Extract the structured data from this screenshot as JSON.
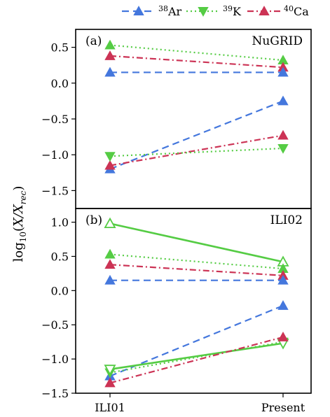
{
  "chart_data": {
    "type": "line",
    "ylabel": "log10(X/Xrec)",
    "legend": {
      "placement": "top-center",
      "entries": [
        {
          "key": "ar",
          "label": "38Ar",
          "sup": "38",
          "base": "Ar",
          "color": "#4477dd",
          "dash": "dashed",
          "marker": "triangle-up"
        },
        {
          "key": "k",
          "label": "39K",
          "sup": "39",
          "base": "K",
          "color": "#55cc44",
          "dash": "dotted",
          "marker": "triangle-down"
        },
        {
          "key": "ca",
          "label": "40Ca",
          "sup": "40",
          "base": "Ca",
          "color": "#cc3355",
          "dash": "dashdot",
          "marker": "triangle-up"
        }
      ]
    },
    "x_categories": [
      "ILI01",
      "Present"
    ],
    "panels": [
      {
        "tag": "(a)",
        "name": "NuGRID",
        "ylim": [
          -1.75,
          0.75
        ],
        "yticks": [
          "0.5",
          "0.0",
          "−0.5",
          "−1.0",
          "−1.5"
        ],
        "ytick_values": [
          0.5,
          0.0,
          -0.5,
          -1.0,
          -1.5
        ],
        "series": [
          {
            "key": "k",
            "style": "dotted",
            "marker": "triangle-up",
            "color": "#55cc44",
            "values": [
              0.53,
              0.32
            ]
          },
          {
            "key": "ca",
            "style": "dashdot",
            "marker": "triangle-up",
            "color": "#cc3355",
            "values": [
              0.38,
              0.22
            ]
          },
          {
            "key": "ar",
            "style": "dashed",
            "marker": "triangle-up",
            "color": "#4477dd",
            "values": [
              0.15,
              0.15
            ]
          },
          {
            "key": "ar",
            "style": "dashed",
            "marker": "triangle-up",
            "color": "#4477dd",
            "values": [
              -1.2,
              -0.25
            ]
          },
          {
            "key": "ca",
            "style": "dashdot",
            "marker": "triangle-up",
            "color": "#cc3355",
            "values": [
              -1.15,
              -0.73
            ]
          },
          {
            "key": "k",
            "style": "dotted",
            "marker": "triangle-down",
            "color": "#55cc44",
            "values": [
              -1.02,
              -0.91
            ]
          }
        ]
      },
      {
        "tag": "(b)",
        "name": "ILI02",
        "ylim": [
          -1.5,
          1.2
        ],
        "yticks": [
          "1.0",
          "0.5",
          "0.0",
          "−0.5",
          "−1.0",
          "−1.5"
        ],
        "ytick_values": [
          1.0,
          0.5,
          0.0,
          -0.5,
          -1.0,
          -1.5
        ],
        "series": [
          {
            "key": "k",
            "style": "solid",
            "marker": "triangle-up-open",
            "color": "#55cc44",
            "values": [
              0.98,
              0.42
            ]
          },
          {
            "key": "k",
            "style": "dotted",
            "marker": "triangle-up",
            "color": "#55cc44",
            "values": [
              0.53,
              0.32
            ]
          },
          {
            "key": "ca",
            "style": "dashdot",
            "marker": "triangle-up",
            "color": "#cc3355",
            "values": [
              0.38,
              0.22
            ]
          },
          {
            "key": "ar",
            "style": "dashed",
            "marker": "triangle-up",
            "color": "#4477dd",
            "values": [
              0.15,
              0.15
            ]
          },
          {
            "key": "ar",
            "style": "dashed",
            "marker": "triangle-up",
            "color": "#4477dd",
            "values": [
              -1.25,
              -0.22
            ]
          },
          {
            "key": "k",
            "style": "dotted",
            "marker": "triangle-down",
            "color": "#55cc44",
            "values": [
              -1.2,
              -0.75
            ]
          },
          {
            "key": "k",
            "style": "solid",
            "marker": "triangle-down-open",
            "color": "#55cc44",
            "values": [
              -1.15,
              -0.77
            ]
          },
          {
            "key": "ca",
            "style": "dashdot",
            "marker": "triangle-up",
            "color": "#cc3355",
            "values": [
              -1.35,
              -0.68
            ]
          }
        ]
      }
    ]
  }
}
